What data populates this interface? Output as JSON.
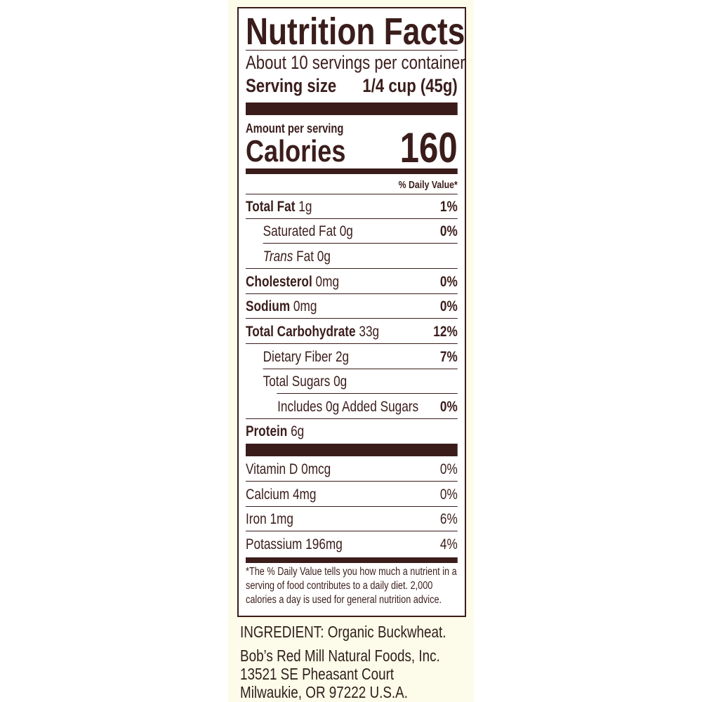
{
  "title": "Nutrition Facts",
  "servings_per_container": "About 10 servings per container",
  "serving_size_label": "Serving size",
  "serving_size_value": "1/4 cup (45g)",
  "amount_per_serving": "Amount per serving",
  "calories_label": "Calories",
  "calories_value": "160",
  "daily_value_header": "% Daily Value*",
  "nutrients": [
    {
      "name": "Total Fat",
      "amount": " 1g",
      "dv": "1%"
    },
    {
      "name": "Saturated Fat 0g",
      "amount": "",
      "dv": "0%"
    },
    {
      "name": "Trans",
      "amount": " Fat 0g",
      "dv": ""
    },
    {
      "name": "Cholesterol",
      "amount": " 0mg",
      "dv": "0%"
    },
    {
      "name": "Sodium",
      "amount": " 0mg",
      "dv": "0%"
    },
    {
      "name": "Total Carbohydrate",
      "amount": " 33g",
      "dv": "12%"
    },
    {
      "name": "Dietary Fiber 2g",
      "amount": "",
      "dv": "7%"
    },
    {
      "name": "Total Sugars 0g",
      "amount": "",
      "dv": ""
    },
    {
      "name": "Includes 0g Added Sugars",
      "amount": "",
      "dv": "0%"
    },
    {
      "name": "Protein",
      "amount": " 6g",
      "dv": ""
    }
  ],
  "vitamins": [
    {
      "name": "Vitamin D 0mcg",
      "dv": "0%"
    },
    {
      "name": "Calcium 4mg",
      "dv": "0%"
    },
    {
      "name": "Iron 1mg",
      "dv": "6%"
    },
    {
      "name": "Potassium 196mg",
      "dv": "4%"
    }
  ],
  "footnote": "*The % Daily Value tells you how much a nutrient in a serving of food contributes to a daily diet. 2,000 calories a day is used for general nutrition advice.",
  "ingredients": "INGREDIENT: Organic Buckwheat.",
  "company": {
    "name": "Bob’s Red Mill Natural Foods, Inc.",
    "street": "13521 SE Pheasant Court",
    "city": "Milwaukie, OR 97222 U.S.A."
  },
  "colors": {
    "brown": "#3a1d1b",
    "cream": "#fdfbe9"
  }
}
